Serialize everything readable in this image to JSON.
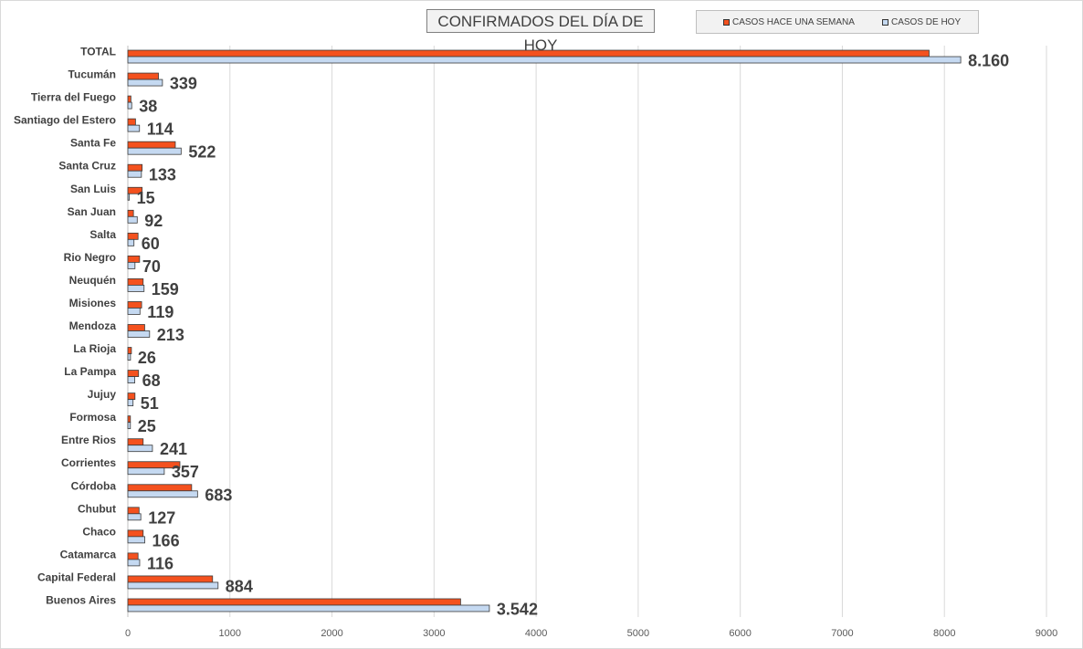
{
  "chart_data": {
    "type": "bar",
    "orientation": "horizontal",
    "title": "CONFIRMADOS DEL DÍA DE HOY",
    "categories": [
      "TOTAL",
      "Tucumán",
      "Tierra del Fuego",
      "Santiago del Estero",
      "Santa Fe",
      "Santa Cruz",
      "San Luis",
      "San Juan",
      "Salta",
      "Rio Negro",
      "Neuquén",
      "Misiones",
      "Mendoza",
      "La Rioja",
      "La Pampa",
      "Jujuy",
      "Formosa",
      "Entre Rios",
      "Corrientes",
      "Córdoba",
      "Chubut",
      "Chaco",
      "Catamarca",
      "Capital Federal",
      "Buenos Aires"
    ],
    "series": [
      {
        "name": "CASOS HACE UNA SEMANA",
        "color": "#f4511e",
        "values": [
          7850,
          300,
          30,
          75,
          465,
          140,
          140,
          55,
          100,
          115,
          150,
          135,
          165,
          35,
          105,
          70,
          25,
          150,
          510,
          625,
          110,
          150,
          100,
          830,
          3260
        ]
      },
      {
        "name": "CASOS DE HOY",
        "color": "#c5d9f1",
        "values": [
          8160,
          339,
          38,
          114,
          522,
          133,
          15,
          92,
          60,
          70,
          159,
          119,
          213,
          26,
          68,
          51,
          25,
          241,
          357,
          683,
          127,
          166,
          116,
          884,
          3542
        ]
      }
    ],
    "data_labels": [
      "8.160",
      "339",
      "38",
      "114",
      "522",
      "133",
      "15",
      "92",
      "60",
      "70",
      "159",
      "119",
      "213",
      "26",
      "68",
      "51",
      "25",
      "241",
      "357",
      "683",
      "127",
      "166",
      "116",
      "884",
      "3.542"
    ],
    "xlim": [
      0,
      9000
    ],
    "xticks": [
      0,
      1000,
      2000,
      3000,
      4000,
      5000,
      6000,
      7000,
      8000,
      9000
    ],
    "grid": true,
    "legend_position": "top-right"
  }
}
